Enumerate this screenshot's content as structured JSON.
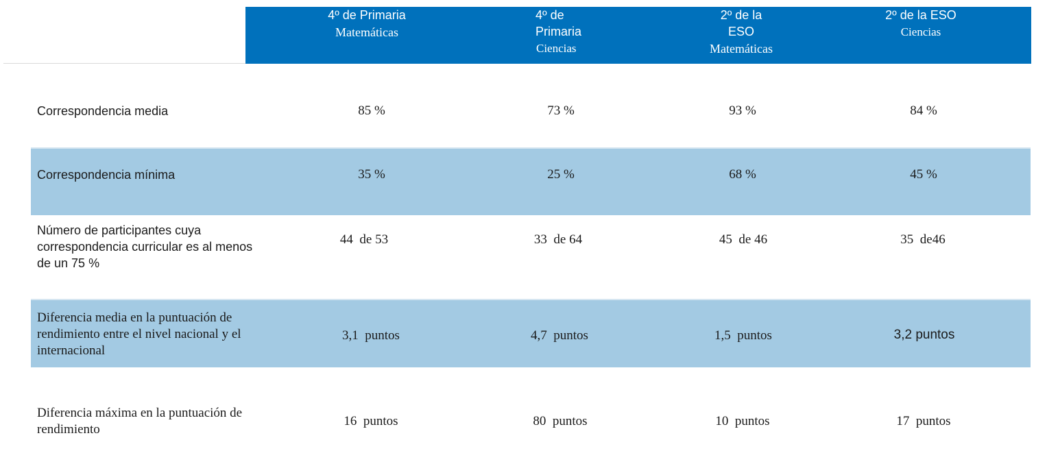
{
  "header": {
    "columns": [
      {
        "line1": "4º de Primaria",
        "line2": "Matemáticas"
      },
      {
        "line1": "4º de",
        "line1b": "Primaria",
        "line2": "Ciencias"
      },
      {
        "line1": "2º de la",
        "line1b": "ESO",
        "line2": "Matemáticas"
      },
      {
        "line1": "2º de la ESO",
        "line2": "Ciencias"
      }
    ]
  },
  "rows": [
    {
      "label": "Correspondencia media",
      "values": [
        "85 %",
        "73 %",
        "93 %",
        "84 %"
      ]
    },
    {
      "label": "Correspondencia mínima",
      "values": [
        "35 %",
        "25 %",
        "68 %",
        "45 %"
      ]
    },
    {
      "label": "Número de participantes cuya correspondencia curricular es al menos de un 75 %",
      "values": [
        "44  de 53",
        "33  de 64",
        "45  de 46",
        "35  de46"
      ]
    },
    {
      "label": "Diferencia media en la puntuación de rendimiento entre el nivel nacional y el internacional",
      "values": [
        "3,1  puntos",
        "4,7  puntos",
        "1,5  puntos",
        "3,2 puntos"
      ]
    },
    {
      "label": "Diferencia máxima en la puntuación de rendimiento",
      "values": [
        "16  puntos",
        "80  puntos",
        "10  puntos",
        "17  puntos"
      ]
    }
  ],
  "colors": {
    "header_bg": "#0071bc",
    "shaded_row": "#a3cae3"
  }
}
